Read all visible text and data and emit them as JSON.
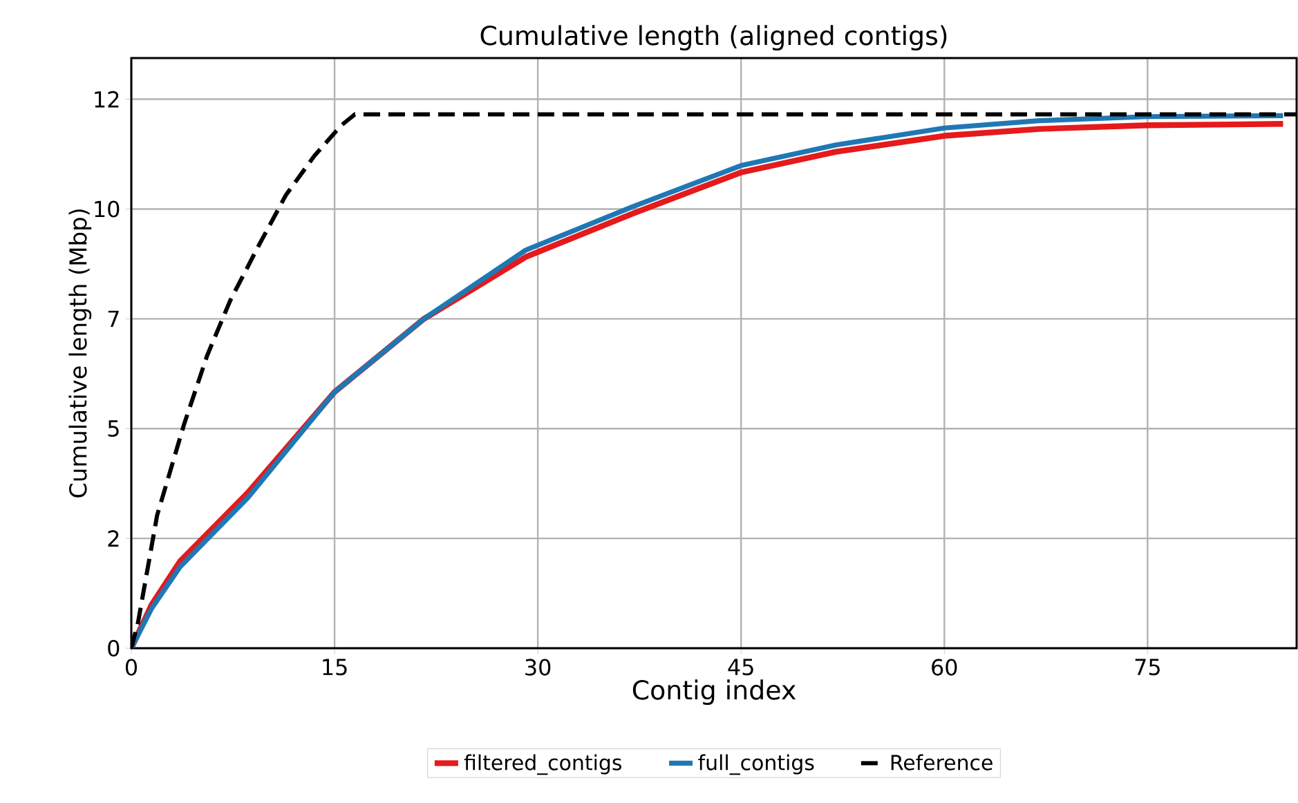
{
  "chart_data": {
    "type": "line",
    "title": "Cumulative length (aligned contigs)",
    "xlabel": "Contig index",
    "ylabel": "Cumulative length (Mbp)",
    "xlim": [
      0,
      86
    ],
    "ylim": [
      0,
      12.9
    ],
    "xticks": [
      0,
      15,
      30,
      45,
      60,
      75
    ],
    "yticks": [
      0,
      {
        "value": 2.4,
        "label": "2"
      },
      {
        "value": 4.8,
        "label": "5"
      },
      {
        "value": 7.2,
        "label": "7"
      },
      {
        "value": 9.6,
        "label": "10"
      },
      12
    ],
    "grid": true,
    "legend": "bottom",
    "series": [
      {
        "name": "filtered_contigs",
        "color": "#e41a1c",
        "line_style": "solid",
        "x": [
          0,
          1.5,
          3.6,
          8.6,
          15,
          21.6,
          29.1,
          37,
          45,
          52,
          60,
          67,
          75,
          85
        ],
        "values": [
          0,
          0.95,
          1.9,
          3.4,
          5.6,
          7.2,
          8.55,
          9.5,
          10.4,
          10.85,
          11.2,
          11.35,
          11.43,
          11.46
        ]
      },
      {
        "name": "full_contigs",
        "color": "#1f78b4",
        "line_style": "solid",
        "x": [
          0,
          1.5,
          3.6,
          8.6,
          15,
          21.6,
          29.1,
          37,
          45,
          52,
          60,
          67,
          75,
          85
        ],
        "values": [
          0,
          0.87,
          1.78,
          3.29,
          5.6,
          7.2,
          8.7,
          9.65,
          10.55,
          11.0,
          11.37,
          11.53,
          11.62,
          11.64
        ]
      },
      {
        "name": "Reference",
        "color": "#000000",
        "line_style": "dashed",
        "x": [
          0,
          0.5,
          1.9,
          3.9,
          5.6,
          7.3,
          9.4,
          11.4,
          13.5,
          15.5,
          16.5,
          86
        ],
        "values": [
          0,
          0.57,
          2.9,
          4.9,
          6.4,
          7.6,
          8.8,
          9.9,
          10.76,
          11.43,
          11.67,
          11.67
        ]
      }
    ]
  }
}
